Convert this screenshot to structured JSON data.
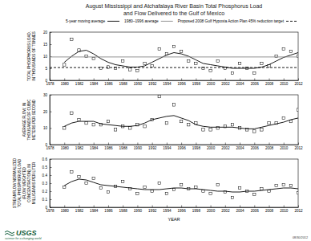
{
  "chart_data": [
    {
      "type": "line",
      "title": "August Mississippi and Atchafalaya River Basin Total Phosphorus Load and Flow Delivered to the Gulf of Mexico",
      "y_label": "TOTAL PHOSPHORUS LOAD, IN THOUSANDS OF TONNES",
      "legend": "top-right",
      "x": [
        1980,
        1981,
        1982,
        1983,
        1984,
        1985,
        1986,
        1987,
        1988,
        1989,
        1990,
        1991,
        1992,
        1993,
        1994,
        1995,
        1996,
        1997,
        1998,
        1999,
        2000,
        2001,
        2002,
        2003,
        2004,
        2005,
        2006,
        2007,
        2008,
        2009,
        2010,
        2011,
        2012
      ],
      "xlim": [
        1978,
        2012
      ],
      "xticks": [
        1978,
        1980,
        1982,
        1984,
        1986,
        1988,
        1990,
        1992,
        1994,
        1996,
        1998,
        2000,
        2002,
        2004,
        2006,
        2008,
        2010,
        2012
      ],
      "ylim": [
        0,
        20
      ],
      "yticks": [
        0,
        5,
        10,
        15,
        20
      ],
      "series": [
        {
          "color": "#000000",
          "marker": "square",
          "line_style": "none",
          "values": [
            6.5,
            17,
            12.5,
            10,
            9,
            5,
            5.5,
            5,
            8,
            4.5,
            4,
            7,
            6,
            13,
            11,
            14,
            12,
            8,
            7,
            5,
            4,
            8,
            5,
            3,
            7,
            5,
            3,
            7,
            6,
            10,
            13,
            12,
            10
          ]
        },
        {
          "name": "5-year moving average",
          "color": "#000000",
          "marker": "none",
          "line_style": "solid",
          "values": [
            7.5,
            10,
            12,
            12.5,
            11,
            9,
            7.5,
            6.5,
            6,
            5.5,
            5.5,
            6,
            7.5,
            9,
            10.5,
            11.5,
            11,
            10,
            8.5,
            7,
            6.5,
            6,
            5.5,
            5,
            5,
            5,
            5,
            5.5,
            6.5,
            8,
            9.5,
            10.5,
            11.5
          ]
        },
        {
          "name": "1980–1996 average",
          "color": "#888888",
          "marker": "none",
          "line_style": "solid",
          "x": [
            1978,
            2012
          ],
          "values": [
            9.7,
            9.7
          ]
        },
        {
          "name": "Proposed 2008 Gulf Hypoxia Action Plan 45% reduction target",
          "color": "#000000",
          "marker": "none",
          "line_style": "dashed",
          "x": [
            1978,
            2012
          ],
          "values": [
            5.3,
            5.3
          ]
        }
      ]
    },
    {
      "type": "line",
      "y_label": "AVERAGE FLOW, IN THOUSANDS OF CUBIC METERS PER SECOND",
      "x": [
        1980,
        1981,
        1982,
        1983,
        1984,
        1985,
        1986,
        1987,
        1988,
        1989,
        1990,
        1991,
        1992,
        1993,
        1994,
        1995,
        1996,
        1997,
        1998,
        1999,
        2000,
        2001,
        2002,
        2003,
        2004,
        2005,
        2006,
        2007,
        2008,
        2009,
        2010,
        2011,
        2012
      ],
      "xlim": [
        1978,
        2012
      ],
      "xticks": [
        1978,
        1980,
        1982,
        1984,
        1986,
        1988,
        1990,
        1992,
        1994,
        1996,
        1998,
        2000,
        2002,
        2004,
        2006,
        2008,
        2010,
        2012
      ],
      "ylim": [
        0,
        30
      ],
      "yticks": [
        0,
        10,
        20,
        30
      ],
      "series": [
        {
          "color": "#000000",
          "marker": "square",
          "line_style": "none",
          "values": [
            10,
            19,
            15,
            13,
            12,
            12,
            14,
            9,
            11,
            10,
            12,
            11,
            15,
            29,
            13,
            24,
            14,
            12,
            13,
            9,
            9,
            10,
            11,
            12,
            10,
            9,
            8,
            9,
            13,
            13,
            16,
            14,
            21
          ]
        },
        {
          "color": "#000000",
          "marker": "none",
          "line_style": "solid",
          "values": [
            11,
            13,
            14,
            14,
            14,
            12.5,
            12,
            11.5,
            11,
            11,
            11.5,
            13,
            15,
            16,
            17,
            17.5,
            16,
            14.5,
            12,
            11,
            10.5,
            10.5,
            10.5,
            10.5,
            10,
            9.5,
            9.5,
            10.5,
            11.5,
            12.5,
            13.5,
            15,
            16
          ]
        }
      ]
    },
    {
      "type": "line",
      "y_label": "STREAMFLOW NORMALIZED TOTAL PHOSPHORUS LOAD (FLOW WEIGHTED CONCENTRATION), IN MILLIGRAMS PER LITER",
      "x_label": "YEAR",
      "x": [
        1980,
        1981,
        1982,
        1983,
        1984,
        1985,
        1986,
        1987,
        1988,
        1989,
        1990,
        1991,
        1992,
        1993,
        1994,
        1995,
        1996,
        1997,
        1998,
        1999,
        2000,
        2001,
        2002,
        2003,
        2004,
        2005,
        2006,
        2007,
        2008,
        2009,
        2010,
        2011,
        2012
      ],
      "xlim": [
        1978,
        2012
      ],
      "xticks": [
        1978,
        1980,
        1982,
        1984,
        1986,
        1988,
        1990,
        1992,
        1994,
        1996,
        1998,
        2000,
        2002,
        2004,
        2006,
        2008,
        2010,
        2012
      ],
      "ylim": [
        0,
        0.6
      ],
      "yticks": [
        0,
        0.1,
        0.2,
        0.3,
        0.4,
        0.5,
        0.6
      ],
      "series": [
        {
          "color": "#000000",
          "marker": "square",
          "line_style": "none",
          "values": [
            0.25,
            0.44,
            0.38,
            0.3,
            0.36,
            0.24,
            0.19,
            0.26,
            0.32,
            0.23,
            0.17,
            0.25,
            0.2,
            0.3,
            0.17,
            0.22,
            0.28,
            0.23,
            0.25,
            0.2,
            0.17,
            0.28,
            0.19,
            0.12,
            0.24,
            0.2,
            0.16,
            0.23,
            0.2,
            0.27,
            0.28,
            0.27,
            0.18
          ]
        },
        {
          "color": "#000000",
          "marker": "none",
          "line_style": "solid",
          "values": [
            0.27,
            0.32,
            0.35,
            0.34,
            0.31,
            0.28,
            0.27,
            0.26,
            0.25,
            0.24,
            0.23,
            0.22,
            0.22,
            0.22,
            0.23,
            0.24,
            0.24,
            0.23,
            0.23,
            0.22,
            0.21,
            0.2,
            0.2,
            0.19,
            0.19,
            0.2,
            0.2,
            0.21,
            0.22,
            0.23,
            0.24,
            0.24,
            0.23
          ]
        }
      ]
    }
  ],
  "footer": {
    "logo": "USGS",
    "tagline": "science for a changing world",
    "date": "08/30/2012"
  }
}
